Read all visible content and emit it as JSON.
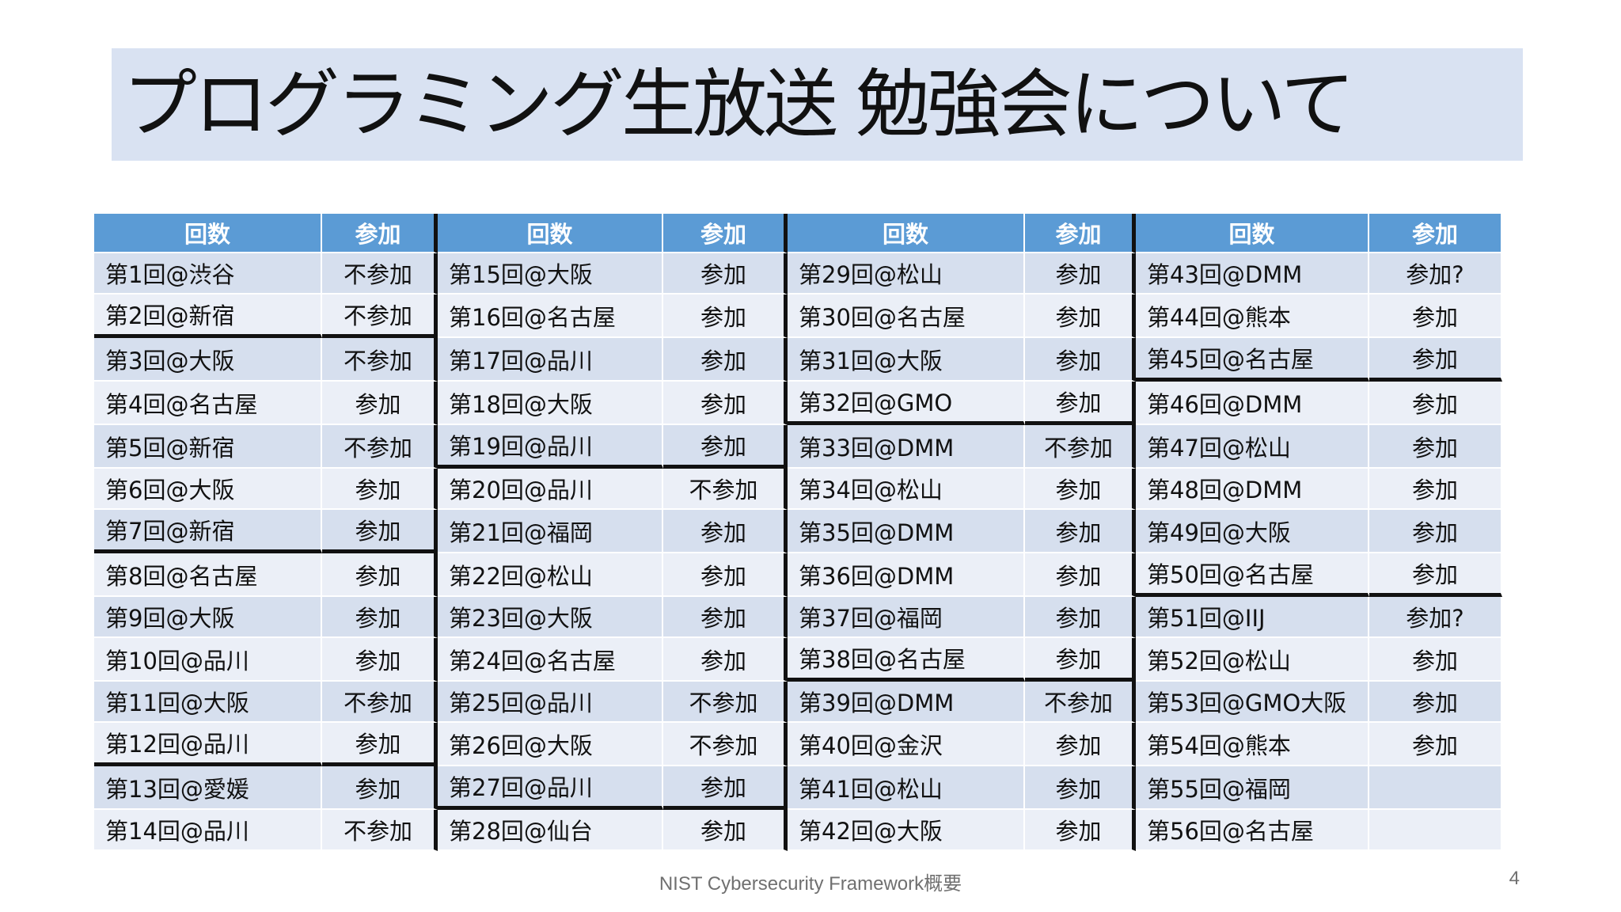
{
  "title": "プログラミング生放送 勉強会について",
  "columns": [
    {
      "header_round": "回数",
      "header_attend": "参加",
      "cut_after": [
        1,
        6,
        11
      ]
    },
    {
      "header_round": "回数",
      "header_attend": "参加",
      "cut_after": [
        4,
        12
      ]
    },
    {
      "header_round": "回数",
      "header_attend": "参加",
      "cut_after": [
        3,
        9
      ]
    },
    {
      "header_round": "回数",
      "header_attend": "参加",
      "cut_after": [
        2,
        7
      ]
    }
  ],
  "rows": [
    [
      [
        "第1回@渋谷",
        "不参加"
      ],
      [
        "第15回@大阪",
        "参加"
      ],
      [
        "第29回@松山",
        "参加"
      ],
      [
        "第43回@DMM",
        "参加?"
      ]
    ],
    [
      [
        "第2回@新宿",
        "不参加"
      ],
      [
        "第16回@名古屋",
        "参加"
      ],
      [
        "第30回@名古屋",
        "参加"
      ],
      [
        "第44回@熊本",
        "参加"
      ]
    ],
    [
      [
        "第3回@大阪",
        "不参加"
      ],
      [
        "第17回@品川",
        "参加"
      ],
      [
        "第31回@大阪",
        "参加"
      ],
      [
        "第45回@名古屋",
        "参加"
      ]
    ],
    [
      [
        "第4回@名古屋",
        "参加"
      ],
      [
        "第18回@大阪",
        "参加"
      ],
      [
        "第32回@GMO",
        "参加"
      ],
      [
        "第46回@DMM",
        "参加"
      ]
    ],
    [
      [
        "第5回@新宿",
        "不参加"
      ],
      [
        "第19回@品川",
        "参加"
      ],
      [
        "第33回@DMM",
        "不参加"
      ],
      [
        "第47回@松山",
        "参加"
      ]
    ],
    [
      [
        "第6回@大阪",
        "参加"
      ],
      [
        "第20回@品川",
        "不参加"
      ],
      [
        "第34回@松山",
        "参加"
      ],
      [
        "第48回@DMM",
        "参加"
      ]
    ],
    [
      [
        "第7回@新宿",
        "参加"
      ],
      [
        "第21回@福岡",
        "参加"
      ],
      [
        "第35回@DMM",
        "参加"
      ],
      [
        "第49回@大阪",
        "参加"
      ]
    ],
    [
      [
        "第8回@名古屋",
        "参加"
      ],
      [
        "第22回@松山",
        "参加"
      ],
      [
        "第36回@DMM",
        "参加"
      ],
      [
        "第50回@名古屋",
        "参加"
      ]
    ],
    [
      [
        "第9回@大阪",
        "参加"
      ],
      [
        "第23回@大阪",
        "参加"
      ],
      [
        "第37回@福岡",
        "参加"
      ],
      [
        "第51回@IIJ",
        "参加?"
      ]
    ],
    [
      [
        "第10回@品川",
        "参加"
      ],
      [
        "第24回@名古屋",
        "参加"
      ],
      [
        "第38回@名古屋",
        "参加"
      ],
      [
        "第52回@松山",
        "参加"
      ]
    ],
    [
      [
        "第11回@大阪",
        "不参加"
      ],
      [
        "第25回@品川",
        "不参加"
      ],
      [
        "第39回@DMM",
        "不参加"
      ],
      [
        "第53回@GMO大阪",
        "参加"
      ]
    ],
    [
      [
        "第12回@品川",
        "参加"
      ],
      [
        "第26回@大阪",
        "不参加"
      ],
      [
        "第40回@金沢",
        "参加"
      ],
      [
        "第54回@熊本",
        "参加"
      ]
    ],
    [
      [
        "第13回@愛媛",
        "参加"
      ],
      [
        "第27回@品川",
        "参加"
      ],
      [
        "第41回@松山",
        "参加"
      ],
      [
        "第55回@福岡",
        ""
      ]
    ],
    [
      [
        "第14回@品川",
        "不参加"
      ],
      [
        "第28回@仙台",
        "参加"
      ],
      [
        "第42回@大阪",
        "参加"
      ],
      [
        "第56回@名古屋",
        ""
      ]
    ]
  ],
  "footer": "NIST Cybersecurity Framework概要",
  "page_number": "4"
}
